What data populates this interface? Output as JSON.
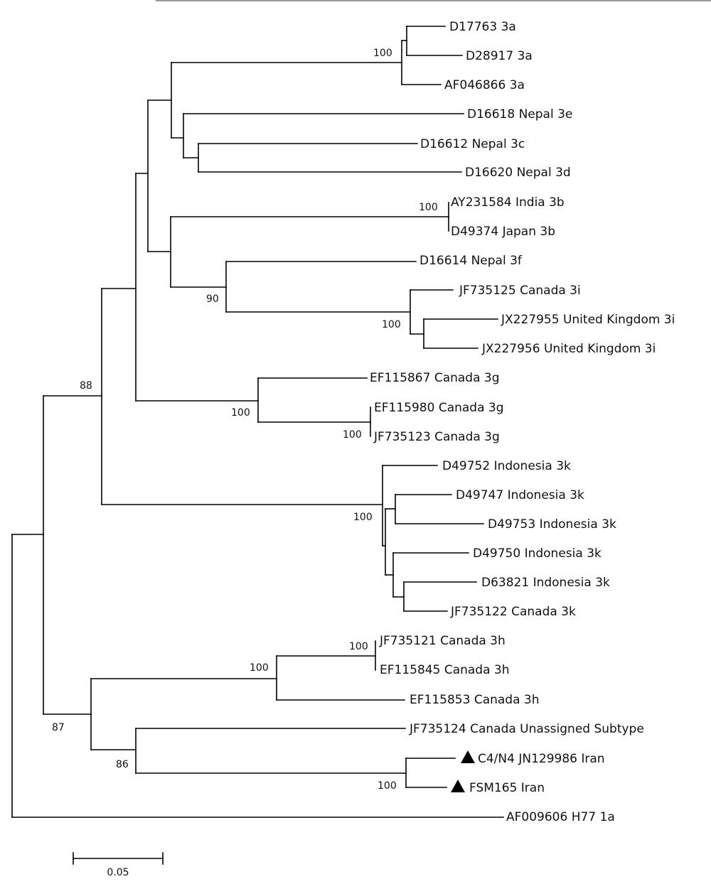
{
  "tree": {
    "leaves": [
      {
        "id": "l1",
        "label": "D17763 3a"
      },
      {
        "id": "l2",
        "label": "D28917 3a"
      },
      {
        "id": "l3",
        "label": "AF046866 3a"
      },
      {
        "id": "l4",
        "label": "D16618 Nepal 3e"
      },
      {
        "id": "l5",
        "label": "D16612 Nepal 3c"
      },
      {
        "id": "l6",
        "label": "D16620 Nepal 3d"
      },
      {
        "id": "l7",
        "label": "AY231584 India 3b"
      },
      {
        "id": "l8",
        "label": "D49374 Japan 3b"
      },
      {
        "id": "l9",
        "label": "D16614 Nepal 3f"
      },
      {
        "id": "l10",
        "label": "JF735125 Canada 3i"
      },
      {
        "id": "l11",
        "label": "JX227955 United Kingdom 3i"
      },
      {
        "id": "l12",
        "label": "JX227956 United Kingdom 3i"
      },
      {
        "id": "l13",
        "label": "EF115867 Canada 3g"
      },
      {
        "id": "l14",
        "label": "EF115980 Canada 3g"
      },
      {
        "id": "l15",
        "label": "JF735123 Canada 3g"
      },
      {
        "id": "l16",
        "label": "D49752 Indonesia 3k"
      },
      {
        "id": "l17",
        "label": "D49747 Indonesia 3k"
      },
      {
        "id": "l18",
        "label": "D49753 Indonesia 3k"
      },
      {
        "id": "l19",
        "label": "D49750 Indonesia 3k"
      },
      {
        "id": "l20",
        "label": "D63821 Indonesia 3k"
      },
      {
        "id": "l21",
        "label": "JF735122 Canada 3k"
      },
      {
        "id": "l22",
        "label": "JF735121 Canada 3h"
      },
      {
        "id": "l23",
        "label": "EF115845 Canada 3h"
      },
      {
        "id": "l24",
        "label": "EF115853 Canada 3h"
      },
      {
        "id": "l25",
        "label": "JF735124 Canada Unassigned Subtype"
      },
      {
        "id": "l26",
        "label": "C4/N4 JN129986 Iran",
        "marker": "triangle"
      },
      {
        "id": "l27",
        "label": "FSM165 Iran",
        "marker": "triangle"
      },
      {
        "id": "l28",
        "label": "AF009606 H77 1a"
      }
    ],
    "bootstrap": [
      {
        "id": "b1",
        "value": "100"
      },
      {
        "id": "b2",
        "value": "100"
      },
      {
        "id": "b3",
        "value": "90"
      },
      {
        "id": "b4",
        "value": "100"
      },
      {
        "id": "b5",
        "value": "88"
      },
      {
        "id": "b6",
        "value": "100"
      },
      {
        "id": "b7",
        "value": "100"
      },
      {
        "id": "b8",
        "value": "100"
      },
      {
        "id": "b9",
        "value": "100"
      },
      {
        "id": "b10",
        "value": "100"
      },
      {
        "id": "b11",
        "value": "87"
      },
      {
        "id": "b12",
        "value": "86"
      },
      {
        "id": "b13",
        "value": "100"
      }
    ],
    "scale_bar": {
      "label": "0.05"
    },
    "marker_color": "#000000"
  }
}
